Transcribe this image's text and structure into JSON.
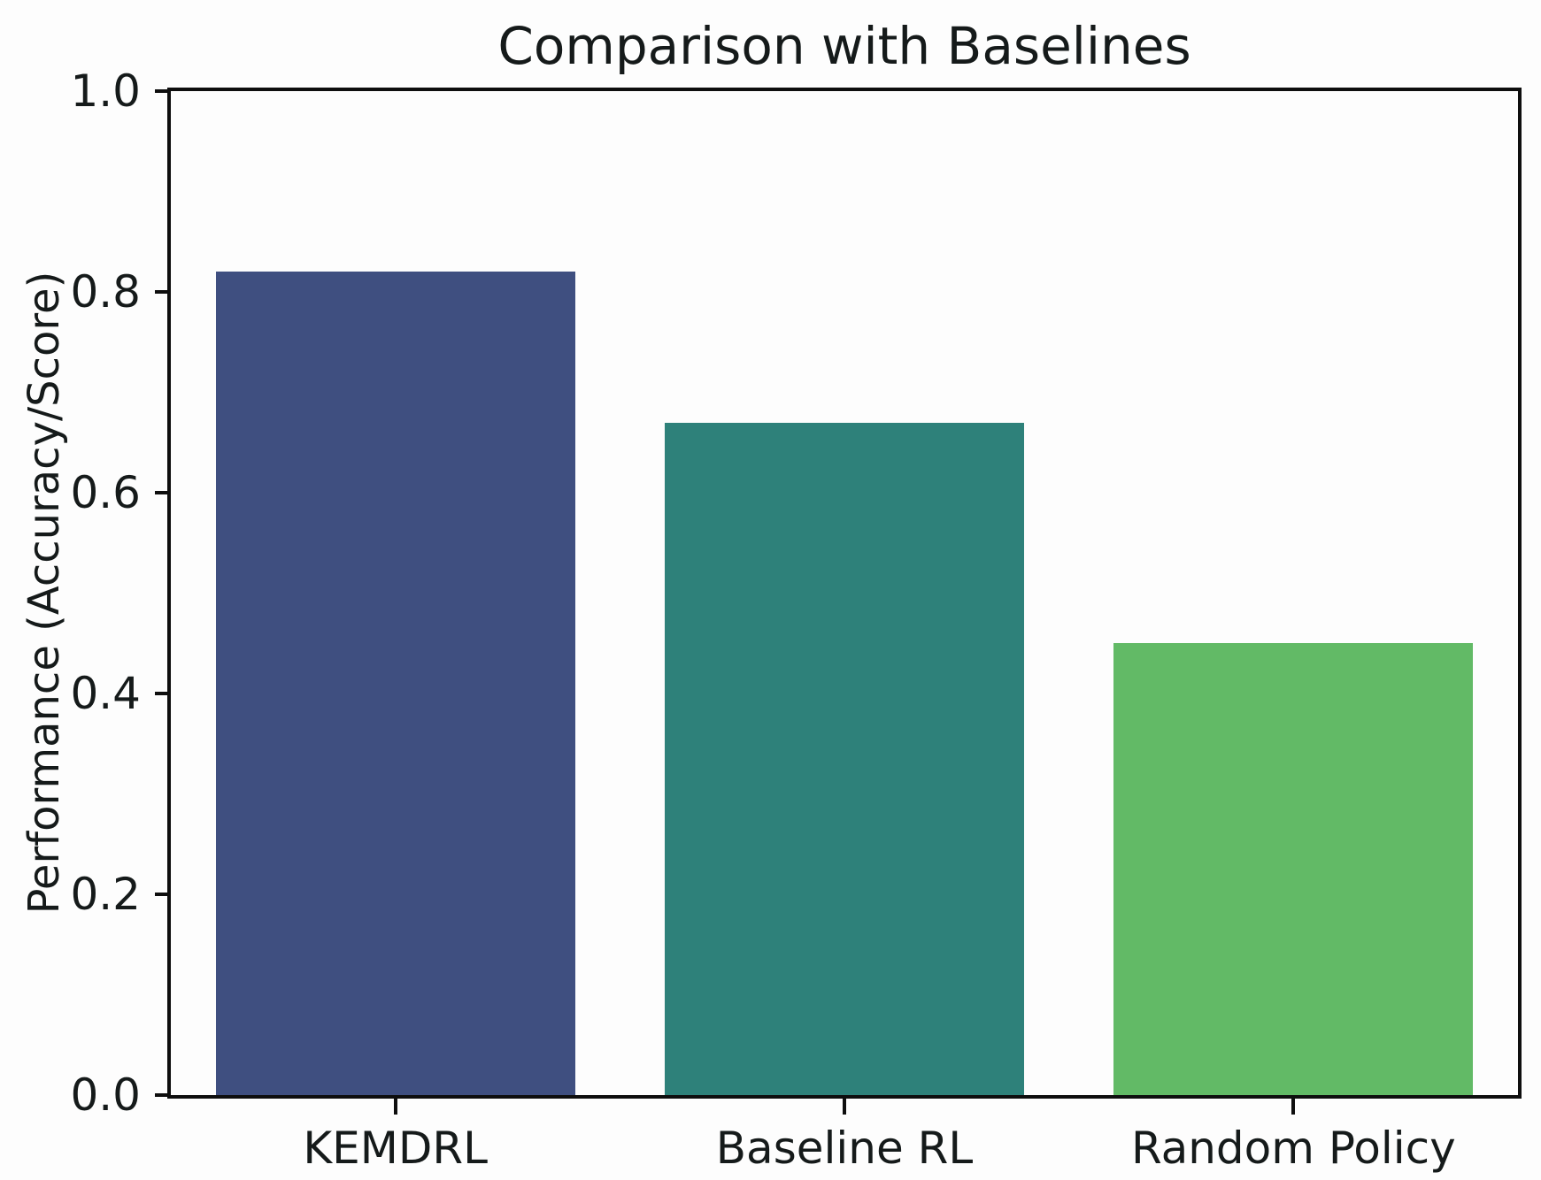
{
  "figure": {
    "background": "#fdfdfd",
    "axis_color": "#0e0e0e",
    "text_color": "#151a1a"
  },
  "chart_data": {
    "type": "bar",
    "title": "Comparison with Baselines",
    "xlabel": "",
    "ylabel": "Performance (Accuracy/Score)",
    "categories": [
      "KEMDRL",
      "Baseline RL",
      "Random Policy"
    ],
    "values": [
      0.82,
      0.67,
      0.45
    ],
    "bar_colors": [
      "#3f4f80",
      "#2e817a",
      "#62ba66"
    ],
    "ylim": [
      0.0,
      1.0
    ],
    "yticks": [
      0.0,
      0.2,
      0.4,
      0.6,
      0.8,
      1.0
    ],
    "ytick_labels": [
      "0.0",
      "0.2",
      "0.4",
      "0.6",
      "0.8",
      "1.0"
    ],
    "bar_width_fraction": 0.8,
    "grid": false,
    "legend": "none"
  }
}
